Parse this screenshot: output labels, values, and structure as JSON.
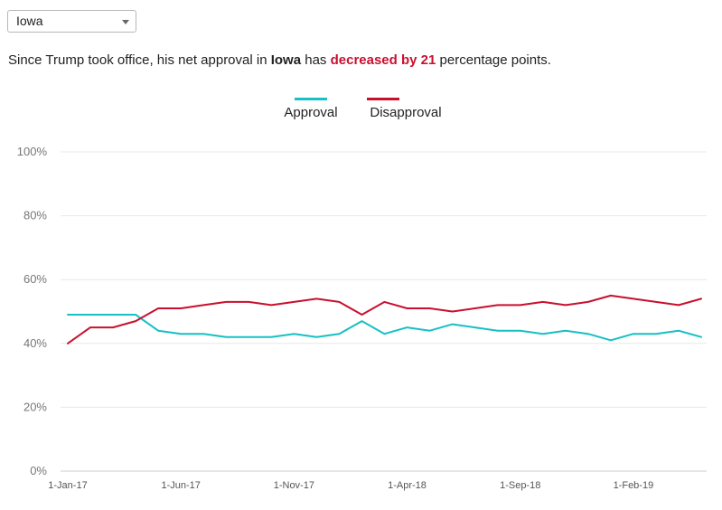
{
  "selector": {
    "value": "Iowa"
  },
  "summary": {
    "prefix": "Since Trump took office, his net approval in ",
    "state": "Iowa",
    "middle": " has ",
    "change": "decreased by 21",
    "suffix": " percentage points."
  },
  "colors": {
    "approval": "#17c0c4",
    "disapproval": "#c8102e",
    "change": "#c8102e"
  },
  "chart_data": {
    "type": "line",
    "x": [
      "2017-01-01",
      "2017-02-01",
      "2017-03-01",
      "2017-04-01",
      "2017-05-01",
      "2017-06-01",
      "2017-07-01",
      "2017-08-01",
      "2017-09-01",
      "2017-10-01",
      "2017-11-01",
      "2017-12-01",
      "2018-01-01",
      "2018-02-01",
      "2018-03-01",
      "2018-04-01",
      "2018-05-01",
      "2018-06-01",
      "2018-07-01",
      "2018-08-01",
      "2018-09-01",
      "2018-10-01",
      "2018-11-01",
      "2018-12-01",
      "2019-01-01",
      "2019-02-01",
      "2019-03-01",
      "2019-04-01",
      "2019-05-01"
    ],
    "series": [
      {
        "name": "Approval",
        "color": "#17c0c4",
        "values": [
          49,
          49,
          49,
          49,
          44,
          43,
          43,
          42,
          42,
          42,
          43,
          42,
          43,
          47,
          43,
          45,
          44,
          46,
          45,
          44,
          44,
          43,
          44,
          43,
          41,
          43,
          43,
          44,
          42
        ]
      },
      {
        "name": "Disapproval",
        "color": "#c8102e",
        "values": [
          40,
          45,
          45,
          47,
          51,
          51,
          52,
          53,
          53,
          52,
          53,
          54,
          53,
          49,
          53,
          51,
          51,
          50,
          51,
          52,
          52,
          53,
          52,
          53,
          55,
          54,
          53,
          52,
          54
        ]
      }
    ],
    "x_tick_labels": [
      "1-Jan-17",
      "1-Jun-17",
      "1-Nov-17",
      "1-Apr-18",
      "1-Sep-18",
      "1-Feb-19"
    ],
    "x_tick_index": [
      0,
      5,
      10,
      15,
      20,
      25
    ],
    "y_tick_labels": [
      "0%",
      "20%",
      "40%",
      "60%",
      "80%",
      "100%"
    ],
    "y_ticks": [
      0,
      20,
      40,
      60,
      80,
      100
    ],
    "ylim": [
      0,
      100
    ],
    "grid": true,
    "legend": "top-center"
  }
}
